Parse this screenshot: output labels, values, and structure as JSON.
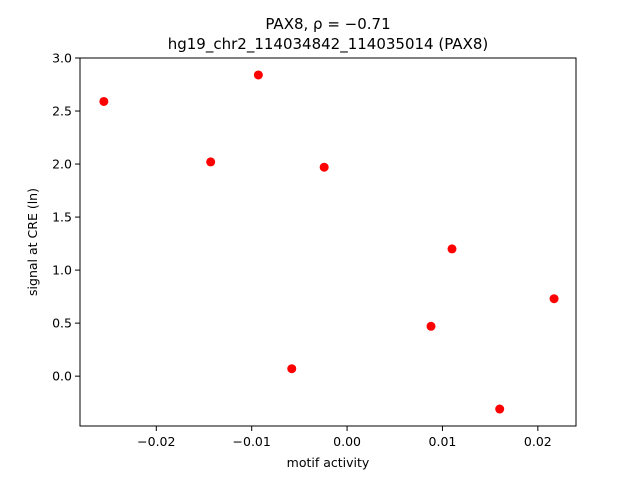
{
  "chart_data": {
    "type": "scatter",
    "title_line1": "PAX8, ρ = −0.71",
    "title_line2": "hg19_chr2_114034842_114035014 (PAX8)",
    "xlabel": "motif activity",
    "ylabel": "signal at CRE (ln)",
    "xlim": [
      -0.028,
      0.024
    ],
    "ylim": [
      -0.47,
      3.0
    ],
    "xticks": [
      -0.02,
      -0.01,
      0.0,
      0.01,
      0.02
    ],
    "xtick_labels": [
      "−0.02",
      "−0.01",
      "0.00",
      "0.01",
      "0.02"
    ],
    "yticks": [
      0.0,
      0.5,
      1.0,
      1.5,
      2.0,
      2.5,
      3.0
    ],
    "ytick_labels": [
      "0.0",
      "0.5",
      "1.0",
      "1.5",
      "2.0",
      "2.5",
      "3.0"
    ],
    "grid": false,
    "legend": "none",
    "marker_color": "#ff0000",
    "points": [
      {
        "x": -0.0255,
        "y": 2.59
      },
      {
        "x": -0.0143,
        "y": 2.02
      },
      {
        "x": -0.0093,
        "y": 2.84
      },
      {
        "x": -0.0058,
        "y": 0.07
      },
      {
        "x": -0.0024,
        "y": 1.97
      },
      {
        "x": 0.0088,
        "y": 0.47
      },
      {
        "x": 0.011,
        "y": 1.2
      },
      {
        "x": 0.016,
        "y": -0.31
      },
      {
        "x": 0.0217,
        "y": 0.73
      }
    ]
  }
}
